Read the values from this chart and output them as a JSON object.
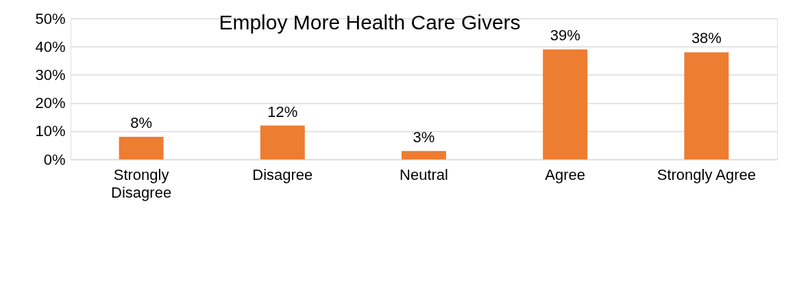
{
  "chart_data": {
    "type": "bar",
    "title": "Employ More Health Care Givers",
    "categories": [
      "Strongly Disagree",
      "Disagree",
      "Neutral",
      "Agree",
      "Strongly Agree"
    ],
    "values": [
      8,
      12,
      3,
      39,
      38
    ],
    "color": "#ed7d31",
    "value_labels": [
      "8%",
      "12%",
      "3%",
      "39%",
      "38%"
    ],
    "ylim": [
      0,
      50
    ],
    "yticks": [
      {
        "value": 0,
        "label": "0%"
      },
      {
        "value": 10,
        "label": "10%"
      },
      {
        "value": 20,
        "label": "20%"
      },
      {
        "value": 30,
        "label": "30%"
      },
      {
        "value": 40,
        "label": "40%"
      },
      {
        "value": 50,
        "label": "50%"
      }
    ],
    "grid": "y"
  }
}
